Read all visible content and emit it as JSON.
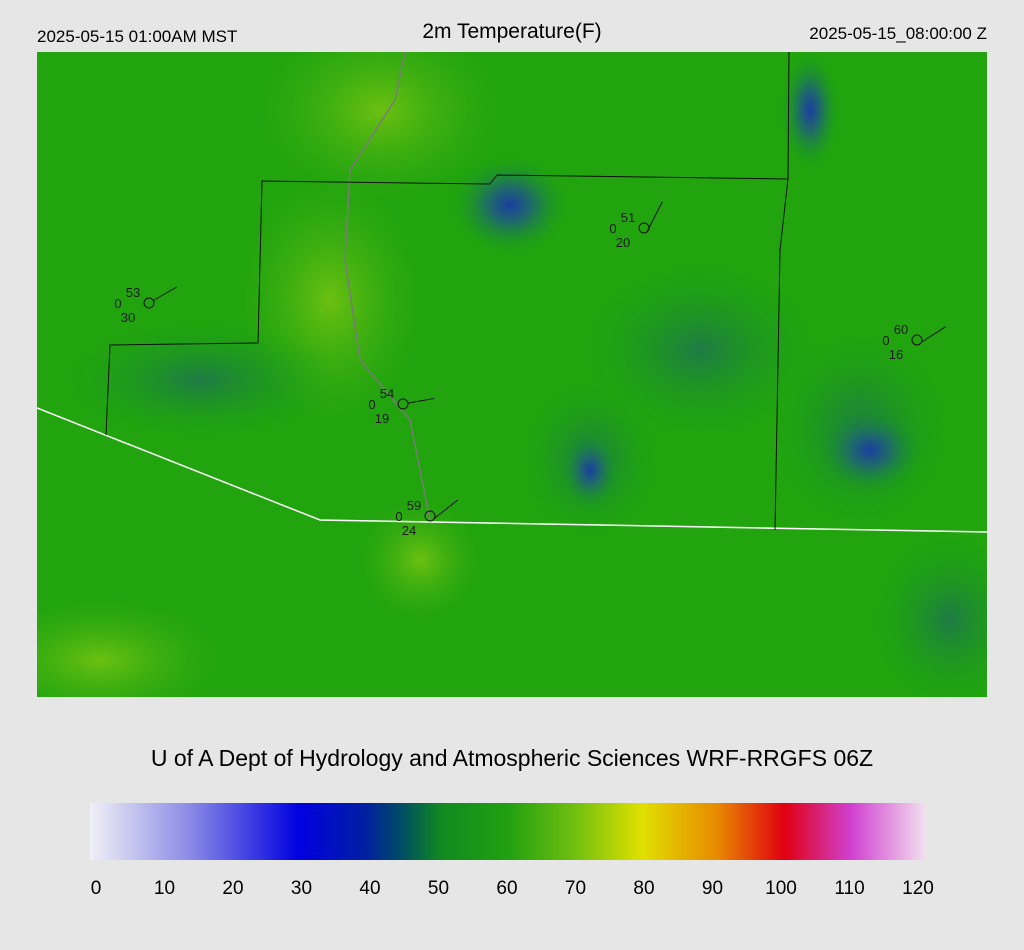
{
  "header": {
    "left": "2025-05-15 01:00AM MST",
    "title": "2m Temperature(F)",
    "right": "2025-05-15_08:00:00 Z"
  },
  "stations": [
    {
      "temp": "53",
      "left": "0",
      "bottom": "30"
    },
    {
      "temp": "51",
      "left": "0",
      "bottom": "20"
    },
    {
      "temp": "60",
      "left": "0",
      "bottom": "16"
    },
    {
      "temp": "54",
      "left": "0",
      "bottom": "19"
    },
    {
      "temp": "59",
      "left": "0",
      "bottom": "24"
    }
  ],
  "credit": "U of A Dept of Hydrology and Atmospheric Sciences WRF-RRGFS 06Z",
  "colorbar": {
    "ticks": [
      "0",
      "10",
      "20",
      "30",
      "40",
      "50",
      "60",
      "70",
      "80",
      "90",
      "100",
      "110",
      "120"
    ]
  }
}
